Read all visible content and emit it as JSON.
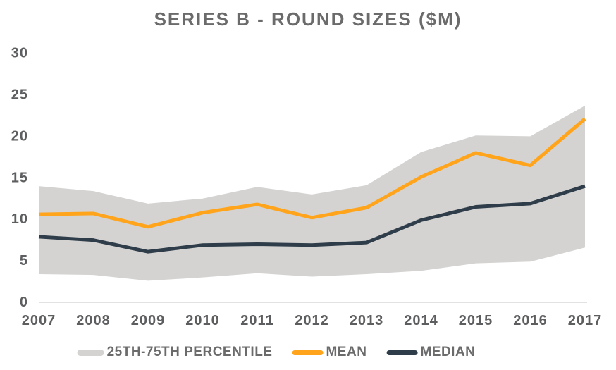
{
  "title": "SERIES B - ROUND SIZES ($M)",
  "chart_data": {
    "type": "line",
    "title": "SERIES B - ROUND SIZES ($M)",
    "categories": [
      "2007",
      "2008",
      "2009",
      "2010",
      "2011",
      "2012",
      "2013",
      "2014",
      "2015",
      "2016",
      "2017"
    ],
    "series": [
      {
        "name": "25TH-75TH PERCENTILE",
        "type": "band",
        "upper": [
          14.0,
          13.4,
          11.9,
          12.5,
          13.9,
          13.0,
          14.1,
          18.1,
          20.1,
          20.0,
          23.7
        ],
        "lower": [
          3.4,
          3.3,
          2.6,
          3.0,
          3.5,
          3.1,
          3.4,
          3.8,
          4.7,
          4.9,
          6.6
        ],
        "color": "#d4d3d2"
      },
      {
        "name": "MEAN",
        "type": "line",
        "values": [
          10.6,
          10.7,
          9.1,
          10.8,
          11.8,
          10.2,
          11.4,
          15.1,
          18.0,
          16.5,
          22.1
        ],
        "color": "#ffa41b"
      },
      {
        "name": "MEDIAN",
        "type": "line",
        "values": [
          7.9,
          7.5,
          6.1,
          6.9,
          7.0,
          6.9,
          7.2,
          9.9,
          11.5,
          11.9,
          14.0
        ],
        "color": "#2e3d49"
      }
    ],
    "xlabel": "",
    "ylabel": "",
    "ylim": [
      0,
      30
    ],
    "yticks": [
      0,
      5,
      10,
      15,
      20,
      25,
      30
    ],
    "grid": false,
    "legend_position": "bottom",
    "colors": {
      "title_text": "#6b6b6b",
      "tick_text": "#5d5e60",
      "axis_line": "#d9d9d9",
      "background": "#ffffff"
    }
  }
}
